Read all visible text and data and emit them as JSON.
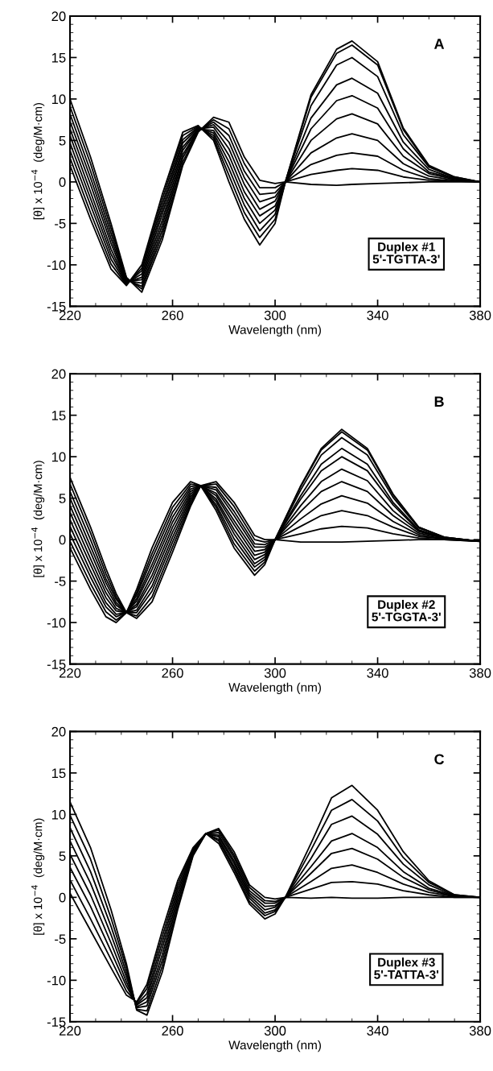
{
  "chart_data": [
    {
      "type": "line",
      "xlabel": "Wavelength (nm)",
      "ylabel": "[θ] x 10$^{−4}$  (deg/M·cm)",
      "annotations": [
        "A",
        "Duplex #1\n5'-TGTTA-3'"
      ],
      "xlim": [
        220,
        380
      ],
      "ylim": [
        -15,
        20
      ],
      "xticks": [
        220,
        260,
        300,
        340,
        380
      ],
      "yticks": [
        -15,
        -10,
        -5,
        0,
        5,
        10,
        15,
        20
      ],
      "x": [
        220,
        228,
        236,
        242,
        248,
        256,
        264,
        270,
        276,
        282,
        288,
        294,
        300,
        304,
        314,
        324,
        330,
        340,
        350,
        360,
        370,
        380
      ],
      "series": [
        {
          "color": "#000000",
          "values": [
            2,
            -4.5,
            -10.5,
            -12.5,
            -10,
            -1.5,
            6,
            6.8,
            5,
            0,
            -4.5,
            -7.6,
            -5,
            0,
            10.5,
            16,
            17,
            14.5,
            6.5,
            2,
            0.6,
            0
          ]
        },
        {
          "color": "#000000",
          "values": [
            2.9,
            -3.7,
            -9.9,
            -12.4,
            -10.4,
            -2.1,
            5.6,
            6.7,
            5.3,
            0.8,
            -3.7,
            -6.7,
            -4.5,
            0,
            10.2,
            15.5,
            16.5,
            14.1,
            6.3,
            1.9,
            0.6,
            0
          ]
        },
        {
          "color": "#000000",
          "values": [
            3.8,
            -2.8,
            -9.3,
            -12.3,
            -10.7,
            -2.7,
            5.1,
            6.6,
            5.6,
            1.6,
            -2.8,
            -5.9,
            -3.9,
            0,
            9.2,
            14.1,
            15,
            12.7,
            5.7,
            1.8,
            0.5,
            0
          ]
        },
        {
          "color": "#000000",
          "values": [
            4.7,
            -2,
            -8.7,
            -12.2,
            -11.1,
            -3.3,
            4.7,
            6.5,
            5.9,
            2.4,
            -2,
            -5,
            -3.4,
            0,
            7.7,
            11.7,
            12.5,
            10.7,
            4.8,
            1.5,
            0.4,
            0
          ]
        },
        {
          "color": "#000000",
          "values": [
            5.6,
            -1.2,
            -8.1,
            -12.1,
            -11.5,
            -3.9,
            4.2,
            6.4,
            6.2,
            3.2,
            -1.2,
            -4.1,
            -2.9,
            0,
            6.4,
            9.8,
            10.4,
            8.9,
            4,
            1.2,
            0.4,
            0
          ]
        },
        {
          "color": "#000000",
          "values": [
            6.4,
            -0.3,
            -7.4,
            -12,
            -11.8,
            -4.6,
            3.8,
            6.4,
            6.6,
            4,
            -0.3,
            -3.3,
            -2.3,
            0,
            5,
            7.6,
            8.2,
            7,
            3.1,
            1,
            0.3,
            0
          ]
        },
        {
          "color": "#000000",
          "values": [
            7.3,
            0.5,
            -6.8,
            -11.9,
            -12.2,
            -5.2,
            3.3,
            6.3,
            6.9,
            4.8,
            0.5,
            -2.4,
            -1.8,
            0,
            3.5,
            5.3,
            5.8,
            5,
            2.2,
            0.7,
            0.2,
            0
          ]
        },
        {
          "color": "#000000",
          "values": [
            8.2,
            1.3,
            -6.2,
            -11.8,
            -12.6,
            -5.8,
            2.9,
            6.2,
            7.2,
            5.6,
            1.3,
            -1.5,
            -1.3,
            0,
            2.1,
            3.2,
            3.5,
            3.1,
            1.4,
            0.4,
            0.1,
            0
          ]
        },
        {
          "color": "#000000",
          "values": [
            9.1,
            2.2,
            -5.6,
            -11.6,
            -12.9,
            -6.4,
            2.4,
            6.1,
            7.5,
            6.4,
            2.2,
            -0.7,
            -0.7,
            0,
            0.9,
            1.4,
            1.6,
            1.4,
            0.6,
            0.2,
            0.1,
            0
          ]
        },
        {
          "color": "#000000",
          "values": [
            10,
            3,
            -5,
            -11.5,
            -13.3,
            -7,
            2,
            6,
            7.8,
            7.2,
            3,
            0.2,
            -0.2,
            0,
            -0.3,
            -0.4,
            -0.3,
            -0.2,
            -0.1,
            0,
            0,
            0
          ]
        }
      ]
    },
    {
      "type": "line",
      "xlabel": "Wavelength (nm)",
      "ylabel": "[θ] x 10$^{−4}$  (deg/M·cm)",
      "annotations": [
        "B",
        "Duplex #2\n5'-TGGTA-3'"
      ],
      "xlim": [
        220,
        380
      ],
      "ylim": [
        -15,
        20
      ],
      "xticks": [
        220,
        260,
        300,
        340,
        380
      ],
      "yticks": [
        -15,
        -10,
        -5,
        0,
        5,
        10,
        15,
        20
      ],
      "x": [
        220,
        228,
        234,
        238,
        242,
        246,
        252,
        260,
        267,
        271,
        277,
        284,
        292,
        296,
        300,
        310,
        318,
        326,
        336,
        346,
        356,
        366,
        380
      ],
      "series": [
        {
          "color": "#000000",
          "values": [
            -1,
            -6,
            -9.3,
            -10,
            -8.8,
            -6,
            -1,
            4.5,
            7,
            6.5,
            3.5,
            -1,
            -4.3,
            -3,
            0,
            6.5,
            11,
            13.3,
            11,
            5.5,
            1.5,
            0.3,
            -0.2
          ]
        },
        {
          "color": "#000000",
          "values": [
            -0.2,
            -5.3,
            -8.7,
            -9.7,
            -8.8,
            -6.4,
            -1.7,
            3.9,
            6.7,
            6.5,
            3.9,
            -0.5,
            -3.8,
            -2.7,
            0,
            6.4,
            10.8,
            13,
            10.8,
            5.4,
            1.5,
            0.3,
            -0.2
          ]
        },
        {
          "color": "#000000",
          "values": [
            0.7,
            -4.5,
            -8.1,
            -9.3,
            -8.8,
            -6.7,
            -2.3,
            3.3,
            6.4,
            6.5,
            4.2,
            0.1,
            -3.3,
            -2.4,
            0,
            6,
            10.2,
            12.3,
            10.2,
            5.1,
            1.4,
            0.3,
            -0.2
          ]
        },
        {
          "color": "#000000",
          "values": [
            1.6,
            -3.8,
            -7.6,
            -9,
            -8.8,
            -7.1,
            -3,
            2.7,
            6.1,
            6.5,
            4.6,
            0.7,
            -2.9,
            -2.1,
            0,
            5.3,
            9.1,
            11,
            9.1,
            4.5,
            1.2,
            0.2,
            -0.2
          ]
        },
        {
          "color": "#000000",
          "values": [
            2.4,
            -3,
            -7,
            -8.6,
            -8.8,
            -7.4,
            -3.6,
            2.1,
            5.8,
            6.5,
            4.9,
            1.2,
            -2.4,
            -1.8,
            0,
            4.9,
            8.3,
            10,
            8.3,
            4.2,
            1.1,
            0.2,
            -0.2
          ]
        },
        {
          "color": "#000000",
          "values": [
            3.3,
            -2.3,
            -6.4,
            -8.3,
            -8.8,
            -7.8,
            -4.3,
            1.5,
            5.5,
            6.5,
            5.3,
            1.8,
            -1.9,
            -1.5,
            0,
            4.1,
            7,
            8.5,
            7.1,
            3.5,
            1,
            0.2,
            -0.2
          ]
        },
        {
          "color": "#000000",
          "values": [
            4.1,
            -1.5,
            -5.8,
            -7.9,
            -8.8,
            -8.1,
            -4.9,
            0.9,
            5.2,
            6.5,
            5.6,
            2.3,
            -1.4,
            -1.2,
            0,
            3.4,
            5.8,
            7,
            5.8,
            2.9,
            0.8,
            0.2,
            -0.2
          ]
        },
        {
          "color": "#000000",
          "values": [
            5,
            -0.8,
            -5.2,
            -7.6,
            -8.8,
            -8.5,
            -5.6,
            0.3,
            4.9,
            6.5,
            6,
            2.9,
            -0.9,
            -0.9,
            0,
            2.5,
            4.3,
            5.3,
            4.4,
            2.2,
            0.6,
            0.1,
            -0.2
          ]
        },
        {
          "color": "#000000",
          "values": [
            5.8,
            0,
            -4.7,
            -7.2,
            -8.8,
            -8.8,
            -6.2,
            -0.3,
            4.6,
            6.5,
            6.3,
            3.4,
            -0.5,
            -0.6,
            0,
            1.6,
            2.9,
            3.5,
            2.9,
            1.5,
            0.4,
            0.1,
            -0.2
          ]
        },
        {
          "color": "#000000",
          "values": [
            6.7,
            0.8,
            -4.1,
            -6.9,
            -8.8,
            -9.2,
            -6.9,
            -0.9,
            4.3,
            6.5,
            6.7,
            4,
            0,
            -0.3,
            0,
            0.7,
            1.3,
            1.6,
            1.4,
            0.7,
            0.2,
            0,
            -0.2
          ]
        },
        {
          "color": "#000000",
          "values": [
            7.5,
            1.5,
            -3.5,
            -6.5,
            -8.8,
            -9.5,
            -7.5,
            -1.5,
            4,
            6.5,
            7,
            4.5,
            0.5,
            0,
            0,
            -0.3,
            -0.3,
            -0.3,
            -0.2,
            -0.1,
            0,
            0,
            -0.2
          ]
        }
      ]
    },
    {
      "type": "line",
      "xlabel": "Wavelength (nm)",
      "ylabel": "[θ] x 10$^{−4}$  (deg/M·cm)",
      "annotations": [
        "C",
        "Duplex #3\n5'-TATTA-3'"
      ],
      "xlim": [
        220,
        380
      ],
      "ylim": [
        -15,
        20
      ],
      "xticks": [
        220,
        260,
        300,
        340,
        380
      ],
      "yticks": [
        -15,
        -10,
        -5,
        0,
        5,
        10,
        15,
        20
      ],
      "x": [
        220,
        228,
        236,
        242,
        246,
        250,
        256,
        262,
        268,
        273,
        278,
        284,
        290,
        296,
        300,
        304,
        314,
        322,
        330,
        340,
        350,
        360,
        370,
        380
      ],
      "series": [
        {
          "color": "#000000",
          "values": [
            0.5,
            -4,
            -8.5,
            -11.8,
            -12.6,
            -10.5,
            -4,
            2,
            6,
            7.7,
            6.5,
            3,
            -0.8,
            -2.6,
            -2,
            0,
            6.5,
            12,
            13.5,
            10.5,
            5.5,
            2,
            0.3,
            0
          ]
        },
        {
          "color": "#000000",
          "values": [
            2.1,
            -2.6,
            -7.5,
            -11.3,
            -12.7,
            -11,
            -4.7,
            1.5,
            5.9,
            7.7,
            6.8,
            3.4,
            -0.5,
            -2.2,
            -1.7,
            0,
            5.7,
            10.5,
            11.8,
            9.2,
            4.8,
            1.8,
            0.3,
            0
          ]
        },
        {
          "color": "#000000",
          "values": [
            3.6,
            -1.1,
            -6.5,
            -10.7,
            -12.9,
            -11.6,
            -5.4,
            1,
            5.7,
            7.7,
            7,
            3.7,
            -0.1,
            -1.9,
            -1.5,
            0,
            4.7,
            8.8,
            9.8,
            7.6,
            4,
            1.5,
            0.2,
            0
          ]
        },
        {
          "color": "#000000",
          "values": [
            5.2,
            0.3,
            -5.5,
            -10.2,
            -13,
            -12.1,
            -6.1,
            0.5,
            5.6,
            7.7,
            7.3,
            4.1,
            0.2,
            -1.5,
            -1.2,
            0,
            3.7,
            6.8,
            7.7,
            6,
            3.1,
            1.1,
            0.2,
            0
          ]
        },
        {
          "color": "#000000",
          "values": [
            6.8,
            1.7,
            -4.5,
            -9.6,
            -13.2,
            -12.6,
            -6.9,
            0,
            5.4,
            7.7,
            7.5,
            4.4,
            0.5,
            -1.1,
            -1,
            0,
            2.9,
            5.3,
            5.9,
            4.6,
            2.4,
            0.9,
            0.1,
            0
          ]
        },
        {
          "color": "#000000",
          "values": [
            8.4,
            3.1,
            -3.5,
            -9.1,
            -13.3,
            -13.1,
            -7.6,
            -0.5,
            5.3,
            7.7,
            7.8,
            4.8,
            0.8,
            -0.7,
            -0.7,
            0,
            1.9,
            3.5,
            3.9,
            3,
            1.6,
            0.6,
            0.1,
            0
          ]
        },
        {
          "color": "#000000",
          "values": [
            9.9,
            4.6,
            -2.5,
            -8.5,
            -13.5,
            -13.7,
            -8.3,
            -1,
            5.1,
            7.7,
            8.1,
            5.1,
            1.2,
            -0.4,
            -0.5,
            0,
            1,
            1.8,
            1.9,
            1.6,
            0.8,
            0.3,
            0,
            0
          ]
        },
        {
          "color": "#000000",
          "values": [
            11.5,
            6,
            -1.5,
            -8,
            -13.6,
            -14.2,
            -9,
            -1.5,
            5,
            7.7,
            8.3,
            5.5,
            1.5,
            0,
            -0.2,
            0,
            -0.1,
            0,
            -0.1,
            -0.1,
            0,
            0,
            0,
            0
          ]
        }
      ]
    }
  ]
}
